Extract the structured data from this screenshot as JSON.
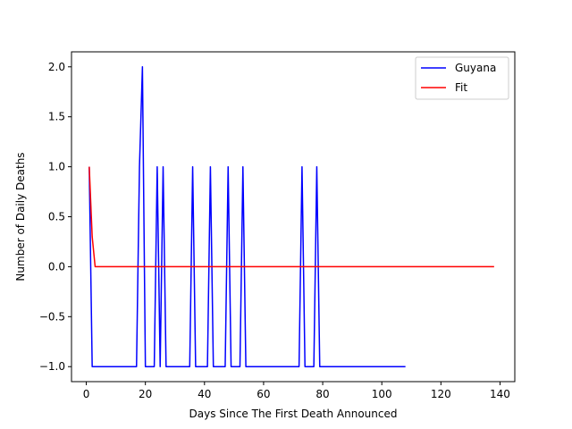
{
  "chart_data": {
    "type": "line",
    "title": "",
    "xlabel": "Days Since The First Death Announced",
    "ylabel": "Number of Daily Deaths",
    "xlim": [
      -5,
      145
    ],
    "ylim": [
      -1.15,
      2.15
    ],
    "xticks": [
      0,
      20,
      40,
      60,
      80,
      100,
      120,
      140
    ],
    "yticks": [
      -1.0,
      -0.5,
      0.0,
      0.5,
      1.0,
      1.5,
      2.0
    ],
    "xtick_labels": [
      "0",
      "20",
      "40",
      "60",
      "80",
      "100",
      "120",
      "140"
    ],
    "ytick_labels": [
      "−1.0",
      "−0.5",
      "0.0",
      "0.5",
      "1.0",
      "1.5",
      "2.0"
    ],
    "grid": false,
    "legend_position": "top-right",
    "series": [
      {
        "name": "Guyana",
        "color": "#0000ff",
        "x": [
          1,
          2,
          17,
          18,
          19,
          20,
          23,
          24,
          25,
          26,
          27,
          35,
          36,
          37,
          41,
          42,
          43,
          47,
          48,
          49,
          52,
          53,
          54,
          72,
          73,
          74,
          77,
          78,
          79,
          108
        ],
        "y": [
          1,
          -1,
          -1,
          1,
          2,
          -1,
          -1,
          1,
          -1,
          1,
          -1,
          -1,
          1,
          -1,
          -1,
          1,
          -1,
          -1,
          1,
          -1,
          -1,
          1,
          -1,
          -1,
          1,
          -1,
          -1,
          1,
          -1,
          -1
        ]
      },
      {
        "name": "Fit",
        "color": "#ff0000",
        "x": [
          1,
          2,
          3,
          138
        ],
        "y": [
          1.0,
          0.3,
          0.0,
          0.0
        ]
      }
    ]
  }
}
